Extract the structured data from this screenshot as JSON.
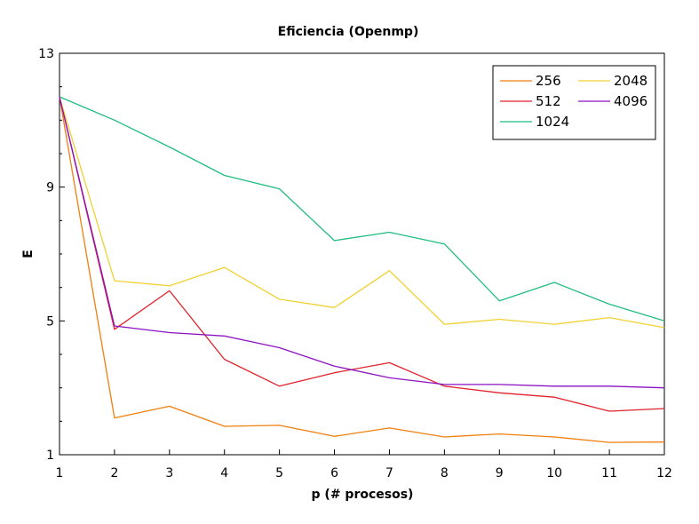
{
  "chart_data": {
    "type": "line",
    "title": "Eficiencia (Openmp)",
    "xlabel": "p (# procesos)",
    "ylabel": "E",
    "xlim": [
      1,
      12
    ],
    "ylim": [
      1,
      13
    ],
    "x": [
      1,
      2,
      3,
      4,
      5,
      6,
      7,
      8,
      9,
      10,
      11,
      12
    ],
    "x_ticks": [
      "1",
      "2",
      "3",
      "4",
      "5",
      "6",
      "7",
      "8",
      "9",
      "10",
      "11",
      "12"
    ],
    "y_ticks": [
      1,
      5,
      9,
      13
    ],
    "y_tick_labels": [
      "1",
      "5",
      "9",
      "13"
    ],
    "legend_position": "top-right",
    "grid": false,
    "series": [
      {
        "name": "256",
        "color": "#f07f0f",
        "values": [
          11.7,
          2.1,
          2.45,
          1.85,
          1.88,
          1.55,
          1.8,
          1.53,
          1.62,
          1.53,
          1.37,
          1.38
        ]
      },
      {
        "name": "512",
        "color": "#e0222b",
        "values": [
          11.7,
          4.75,
          5.9,
          3.85,
          3.05,
          3.45,
          3.75,
          3.05,
          2.85,
          2.72,
          2.3,
          2.38
        ]
      },
      {
        "name": "1024",
        "color": "#22bd80",
        "values": [
          11.7,
          11.0,
          10.2,
          9.35,
          8.95,
          7.4,
          7.65,
          7.3,
          5.6,
          6.15,
          5.5,
          5.0
        ]
      },
      {
        "name": "2048",
        "color": "#f0d133",
        "values": [
          11.7,
          6.2,
          6.05,
          6.6,
          5.65,
          5.4,
          6.5,
          4.9,
          5.05,
          4.9,
          5.1,
          4.8
        ]
      },
      {
        "name": "4096",
        "color": "#8b12c2",
        "values": [
          11.7,
          4.85,
          4.65,
          4.55,
          4.2,
          3.65,
          3.3,
          3.1,
          3.1,
          3.05,
          3.05,
          3.0
        ]
      }
    ]
  }
}
